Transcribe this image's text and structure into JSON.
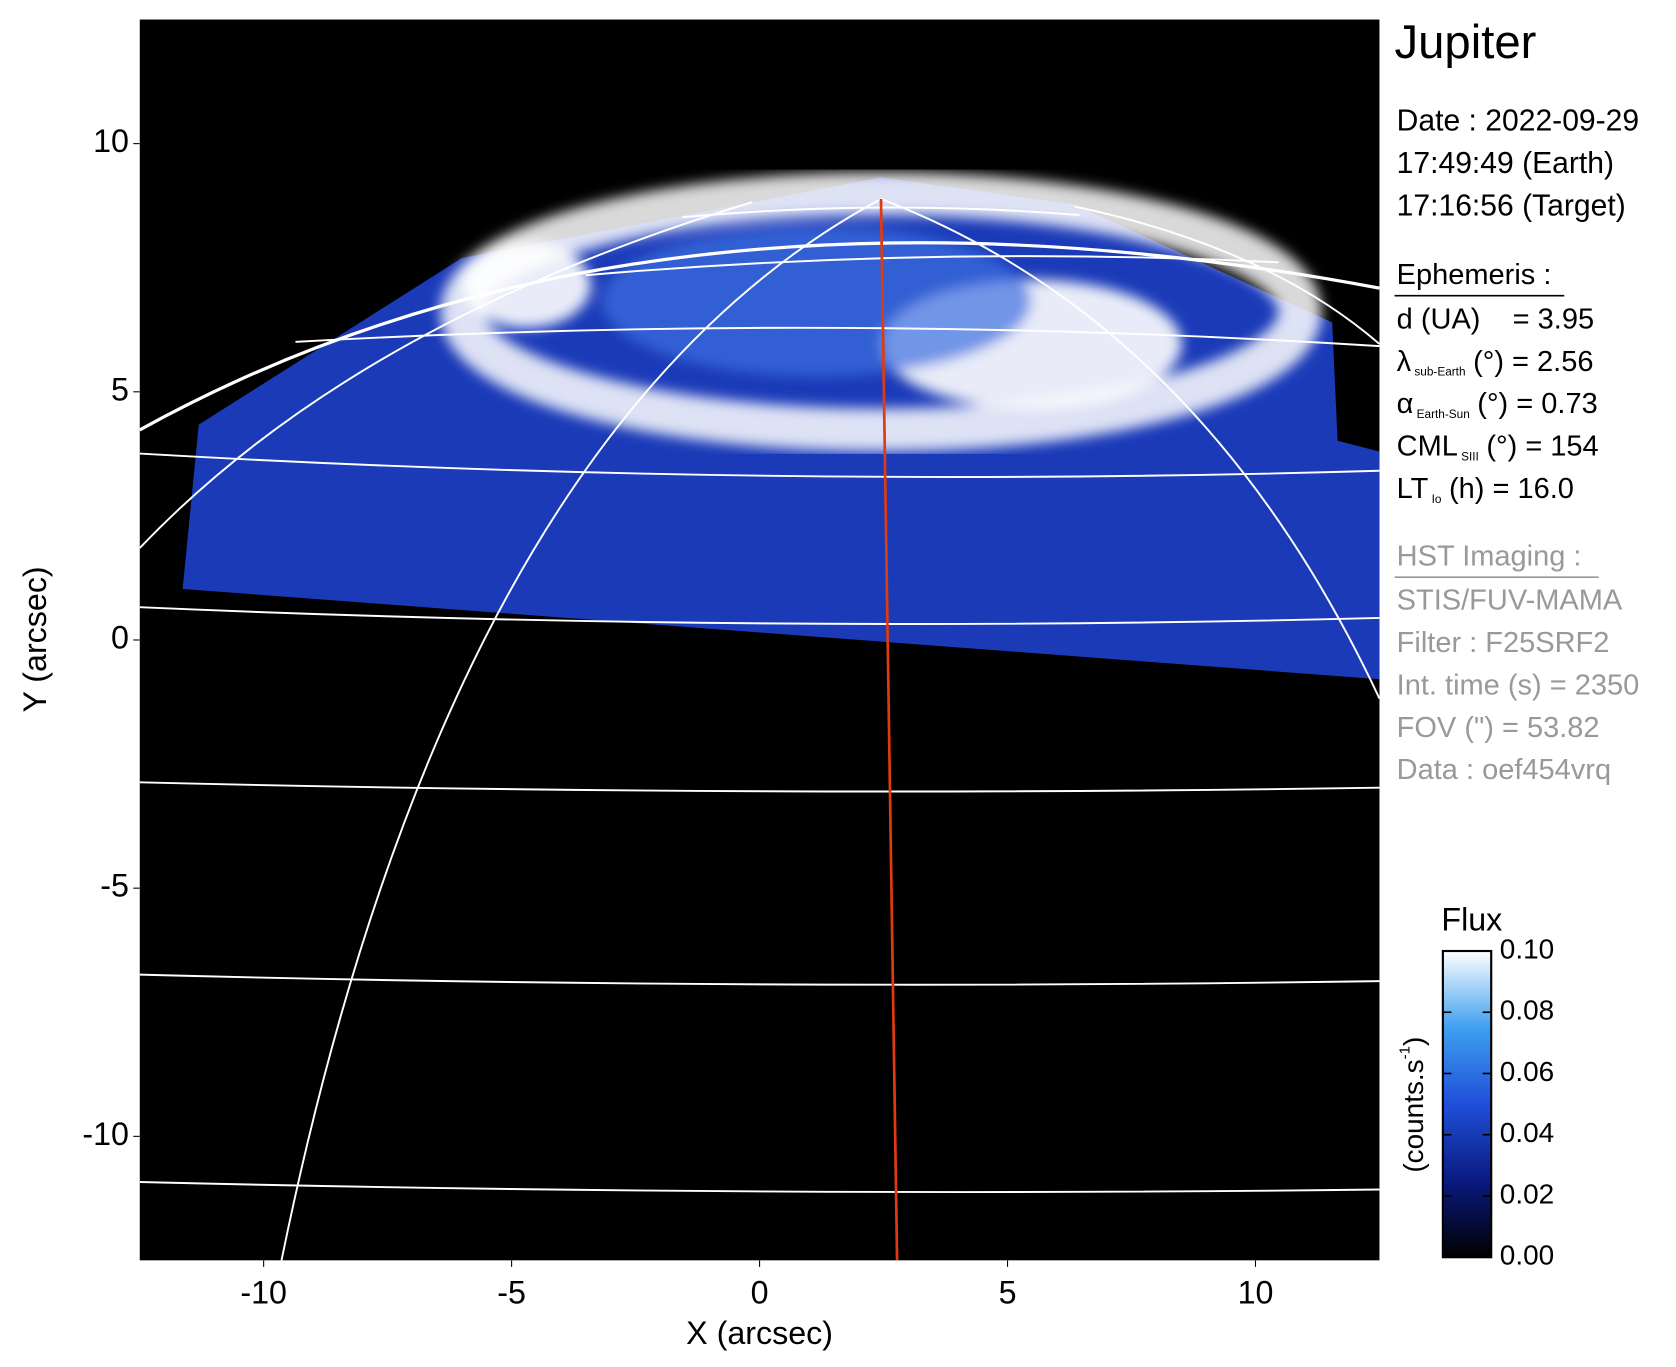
{
  "chart_data": {
    "type": "image",
    "title": "Jupiter",
    "xlabel": "X (arcsec)",
    "ylabel": "Y (arcsec)",
    "xlim": [
      -12.5,
      12.5
    ],
    "ylim": [
      -12.5,
      12.5
    ],
    "xticks": [
      -10,
      -5,
      0,
      5,
      10
    ],
    "yticks": [
      10,
      5,
      0,
      -5,
      -10
    ],
    "info": {
      "date_lines": [
        "Date : 2022-09-29",
        "17:49:49 (Earth)",
        "17:16:56 (Target)"
      ],
      "ephemeris_title": "Ephemeris :",
      "ephemeris": [
        {
          "text": "d (UA)    = 3.95"
        },
        {
          "symbol": "λ",
          "sub": "sub-Earth",
          "text": "(°) = 2.56"
        },
        {
          "symbol": "α",
          "sub": "Earth-Sun",
          "text": "(°) = 0.73"
        },
        {
          "symbol": "CML",
          "sub": "SIII",
          "text": "(°) = 154"
        },
        {
          "symbol": "LT",
          "sub": "Io",
          "text": "(h) = 16.0"
        }
      ],
      "instrument_title": "HST Imaging :",
      "instrument": [
        "STIS/FUV-MAMA",
        "Filter : F25SRF2",
        "Int. time (s) = 2350",
        "FOV (\") = 53.82",
        "Data : oef454vrq"
      ]
    },
    "colorbar": {
      "title": "Flux",
      "label": {
        "text": "(counts.s",
        "sup": "-1",
        "end": ")"
      },
      "lim": [
        0,
        0.1
      ],
      "ticks": [
        {
          "value": 0,
          "label": "0.00"
        },
        {
          "value": 0.02,
          "label": "0.02"
        },
        {
          "value": 0.04,
          "label": "0.04"
        },
        {
          "value": 0.06,
          "label": "0.06"
        },
        {
          "value": 0.08,
          "label": "0.08"
        },
        {
          "value": 0.1,
          "label": "0.10"
        }
      ]
    }
  }
}
